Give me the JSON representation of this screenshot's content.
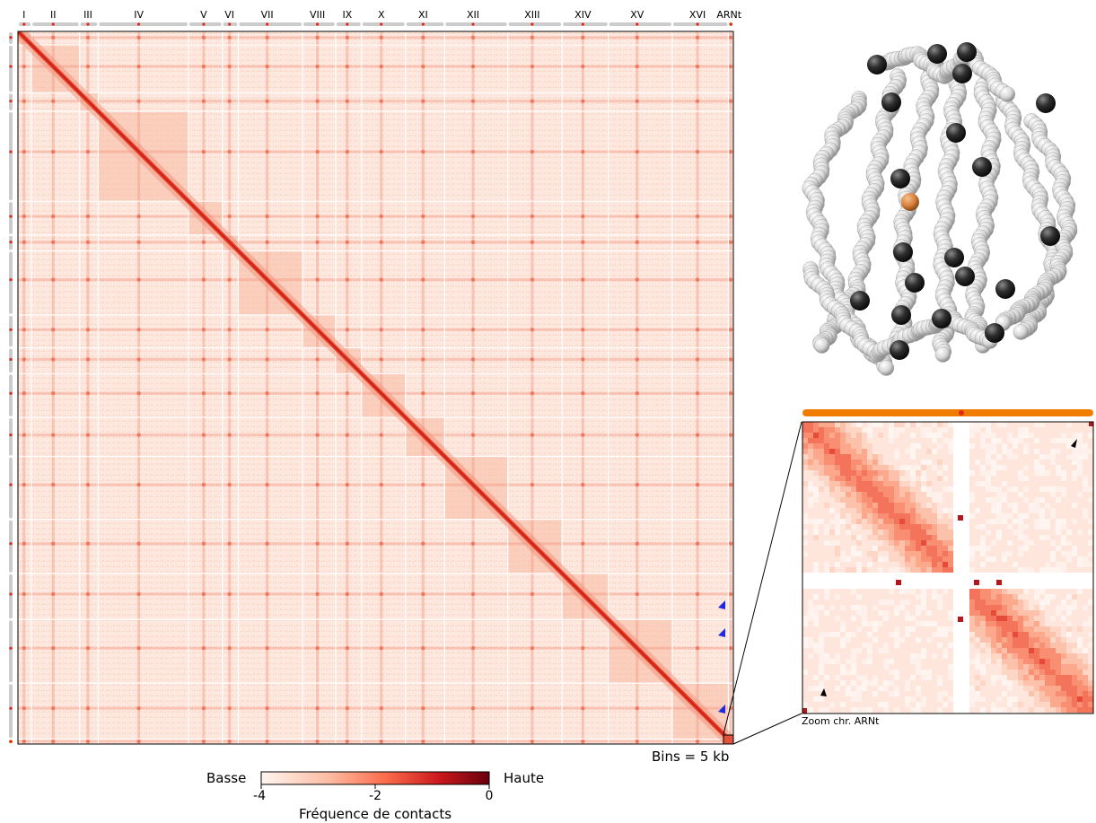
{
  "chart_data": {
    "type": "heatmap",
    "title": "",
    "chromosomes": [
      "I",
      "II",
      "III",
      "IV",
      "V",
      "VI",
      "VII",
      "VIII",
      "IX",
      "X",
      "XI",
      "XII",
      "XIII",
      "XIV",
      "XV",
      "XVI",
      "ARNt"
    ],
    "chromosome_sizes": [
      46,
      163,
      63,
      306,
      115,
      54,
      218,
      112,
      88,
      149,
      133,
      214,
      184,
      157,
      217,
      190,
      17
    ],
    "bin_size_label": "Bins = 5 kb",
    "colorbar": {
      "low_label": "Basse",
      "high_label": "Haute",
      "ticks": [
        "-4",
        "-2",
        "0"
      ],
      "range": [
        -4,
        0
      ],
      "title": "Fréquence de contacts",
      "colors": [
        "#fff5f0",
        "#fcbba1",
        "#fb6a4a",
        "#cb181d",
        "#67000d"
      ]
    },
    "zoom": {
      "caption": "Zoom chr. ARNt"
    },
    "colors": {
      "accent": "#f07d00",
      "centromere": "#e3261c",
      "arrow_blue": "#1f2ae0",
      "chrom_bar": "#cccccc"
    }
  }
}
